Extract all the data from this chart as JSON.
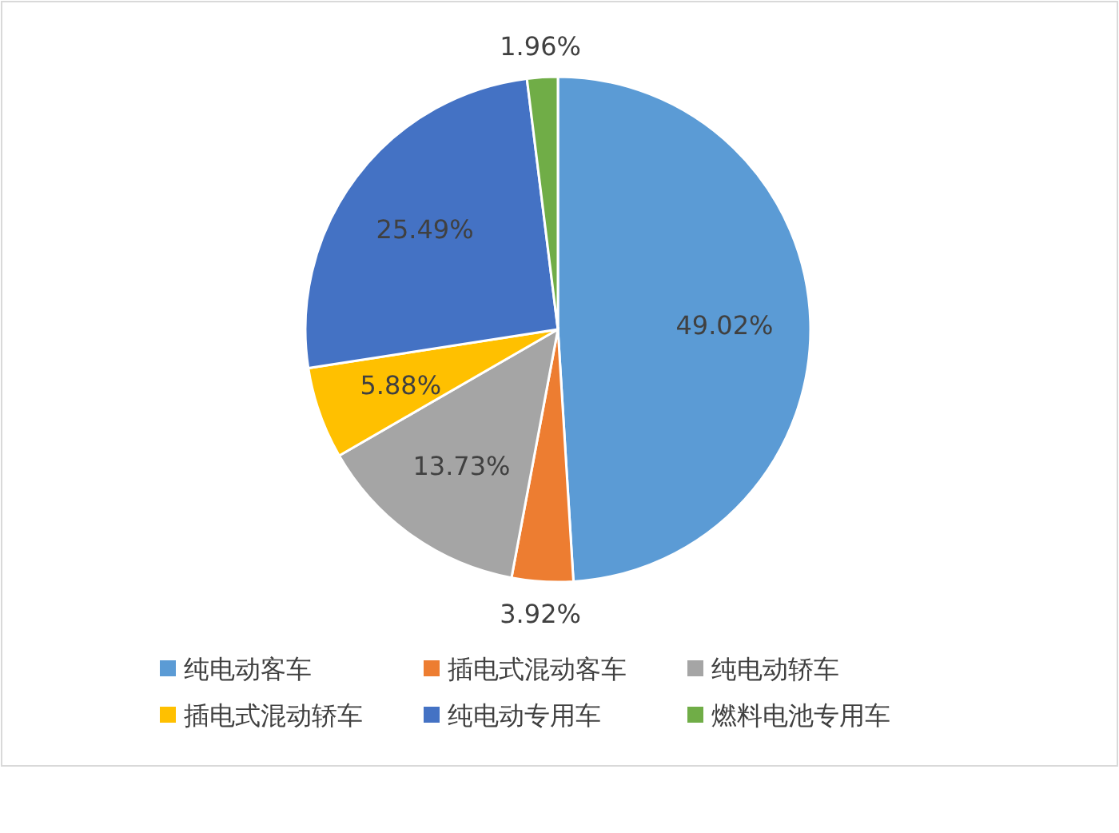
{
  "chart_data": {
    "type": "pie",
    "categories": [
      "纯电动客车",
      "插电式混动客车",
      "纯电动轿车",
      "插电式混动轿车",
      "纯电动专用车",
      "燃料电池专用车"
    ],
    "values": [
      49.02,
      3.92,
      13.73,
      5.88,
      25.49,
      1.96
    ],
    "value_labels": [
      "49.02%",
      "3.92%",
      "13.73%",
      "5.88%",
      "25.49%",
      "1.96%"
    ],
    "colors": [
      "#5b9bd5",
      "#ed7d31",
      "#a5a5a5",
      "#ffc000",
      "#4472c4",
      "#70ad47"
    ],
    "legend": "bottom"
  }
}
